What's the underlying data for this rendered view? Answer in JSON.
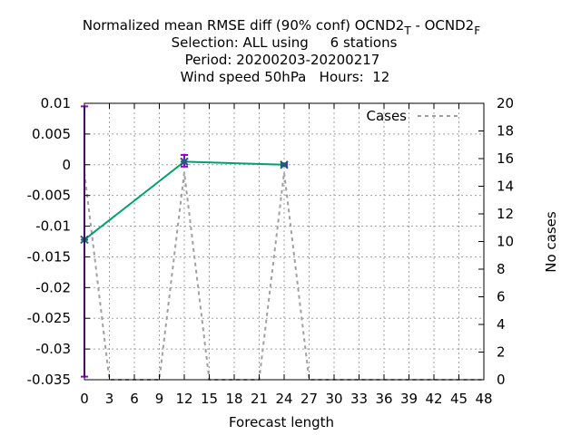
{
  "chart_data": {
    "type": "line",
    "title": {
      "line1_main": "Normalized mean RMSE diff (90% conf) OCND2",
      "line1_sub1": "T",
      "line1_mid": " - OCND2",
      "line1_sub2": "F",
      "line2": "Selection: ALL using     6 stations",
      "line3": "Period: 20200203-20200217",
      "line4": "Wind speed 50hPa   Hours:  12"
    },
    "xlabel": "Forecast length",
    "ylabel": "",
    "y2label": "No cases",
    "xlim": [
      0,
      48
    ],
    "ylim": [
      -0.035,
      0.01
    ],
    "y2lim": [
      0,
      20
    ],
    "grid": true,
    "legend_position": "top-right",
    "x_ticks": [
      "0",
      "3",
      "6",
      "9",
      "12",
      "15",
      "18",
      "21",
      "24",
      "27",
      "30",
      "33",
      "36",
      "39",
      "42",
      "45",
      "48"
    ],
    "y_ticks": [
      "0.01",
      "0.005",
      "0",
      "-0.005",
      "-0.01",
      "-0.015",
      "-0.02",
      "-0.025",
      "-0.03",
      "-0.035"
    ],
    "y2_ticks": [
      "20",
      "18",
      "16",
      "14",
      "12",
      "10",
      "8",
      "6",
      "4",
      "2",
      "0"
    ],
    "series": [
      {
        "kind": "line",
        "color": "#009e73",
        "x": [
          0,
          12,
          24
        ],
        "y": [
          -0.0122,
          0.0005,
          0.0
        ],
        "err_low": [
          -0.0345,
          -0.0003,
          -0.0002
        ],
        "err_high": [
          0.0095,
          0.0016,
          0.0002
        ],
        "err_color": "#9400d3"
      },
      {
        "name": "Cases",
        "kind": "cases",
        "color": "#a0a0a0",
        "x": [
          0,
          3,
          9,
          12,
          15,
          21,
          24,
          27,
          48
        ],
        "y": [
          15,
          0,
          0,
          15,
          0,
          0,
          15,
          0,
          0
        ]
      }
    ]
  }
}
